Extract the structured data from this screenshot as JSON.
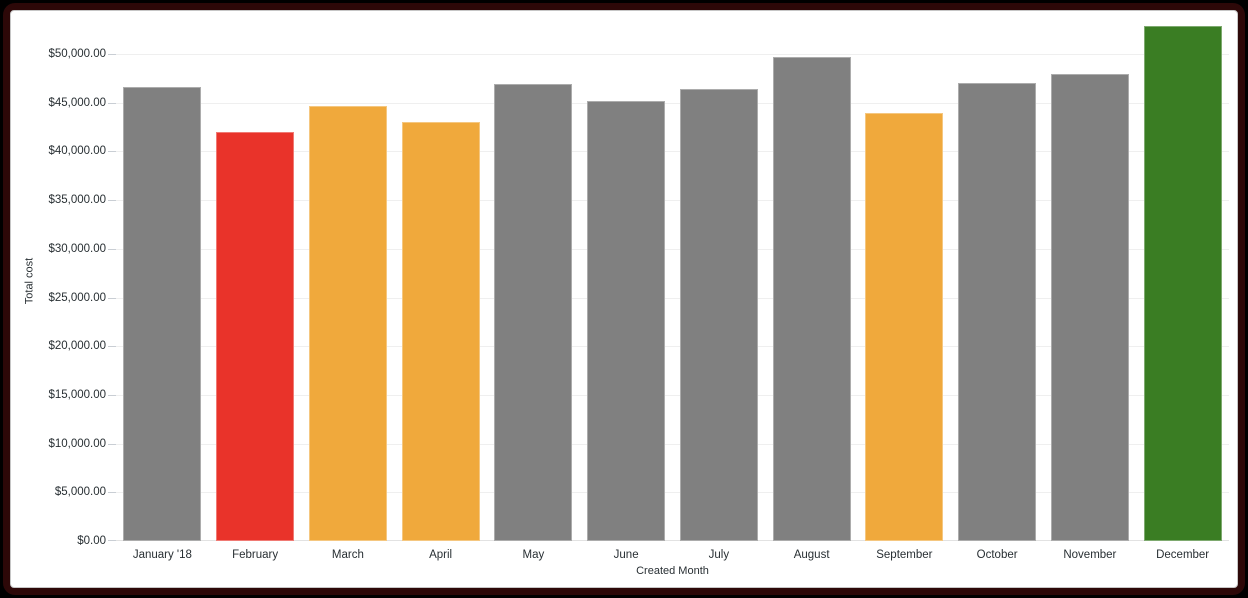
{
  "frame": {
    "outer_color": "#000000",
    "border_color": "#2d0808",
    "card_background": "#ffffff"
  },
  "chart_data": {
    "type": "bar",
    "title": "",
    "xlabel": "Created Month",
    "ylabel": "Total cost",
    "categories": [
      "January '18",
      "February",
      "March",
      "April",
      "May",
      "June",
      "July",
      "August",
      "September",
      "October",
      "November",
      "December"
    ],
    "values": [
      46600,
      42000,
      44700,
      43000,
      46900,
      45200,
      46400,
      49700,
      44000,
      47000,
      48000,
      52900
    ],
    "bar_colors": [
      "#808080",
      "#E9332A",
      "#F0A93C",
      "#F0A93C",
      "#808080",
      "#808080",
      "#808080",
      "#808080",
      "#F0A93C",
      "#808080",
      "#808080",
      "#3A7D23"
    ],
    "default_bar_color": "#808080",
    "highlight_colors": {
      "low": "#E9332A",
      "warning": "#F0A93C",
      "high": "#3A7D23"
    },
    "ylim": [
      0,
      53400
    ],
    "yticks": [
      {
        "value": 0,
        "label": "$0.00"
      },
      {
        "value": 5000,
        "label": "$5,000.00"
      },
      {
        "value": 10000,
        "label": "$10,000.00"
      },
      {
        "value": 15000,
        "label": "$15,000.00"
      },
      {
        "value": 20000,
        "label": "$20,000.00"
      },
      {
        "value": 25000,
        "label": "$25,000.00"
      },
      {
        "value": 30000,
        "label": "$30,000.00"
      },
      {
        "value": 35000,
        "label": "$35,000.00"
      },
      {
        "value": 40000,
        "label": "$40,000.00"
      },
      {
        "value": 45000,
        "label": "$45,000.00"
      },
      {
        "value": 50000,
        "label": "$50,000.00"
      }
    ],
    "grid": true,
    "legend": "none"
  }
}
